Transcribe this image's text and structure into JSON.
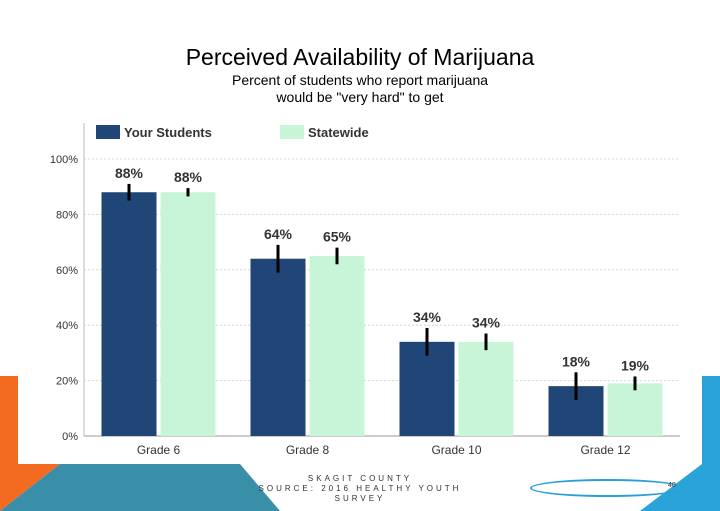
{
  "slide": {
    "title": "Perceived Availability of Marijuana",
    "subtitle_line1": "Percent of students who report marijuana",
    "subtitle_line2": "would be \"very hard\" to get",
    "footer_line1": "SKAGIT COUNTY",
    "footer_line2": "SOURCE: 2016 HEALTHY YOUTH SURVEY",
    "page_number": "40"
  },
  "colors": {
    "your_students": "#1f4676",
    "statewide": "#c8f5d8",
    "orange_accent": "#f26b21",
    "blue_accent": "#2aa3d8",
    "teal_accent": "#3a8fa8"
  },
  "chart_data": {
    "type": "bar",
    "title": "",
    "xlabel": "",
    "ylabel": "",
    "ylim": [
      0,
      100
    ],
    "yticks": [
      "0%",
      "20%",
      "40%",
      "60%",
      "80%",
      "100%"
    ],
    "categories": [
      "Grade 6",
      "Grade 8",
      "Grade 10",
      "Grade 12"
    ],
    "legend_position": "top",
    "series": [
      {
        "name": "Your Students",
        "values": [
          88,
          64,
          34,
          18
        ],
        "labels": [
          "88%",
          "64%",
          "34%",
          "18%"
        ],
        "error": [
          3,
          5,
          5,
          5
        ]
      },
      {
        "name": "Statewide",
        "values": [
          88,
          65,
          34,
          19
        ],
        "labels": [
          "88%",
          "65%",
          "34%",
          "19%"
        ],
        "error": [
          1.5,
          3,
          3,
          2.5
        ]
      }
    ]
  }
}
